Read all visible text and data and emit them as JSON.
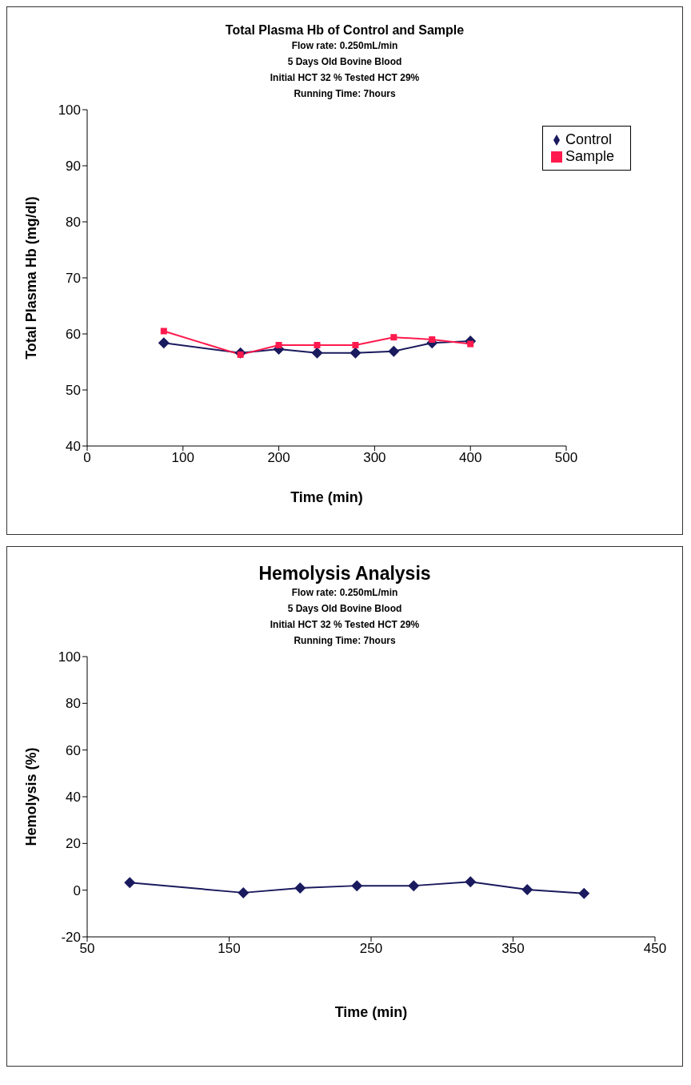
{
  "chart_data": [
    {
      "type": "line",
      "title": "Total Plasma Hb of Control and Sample",
      "subtitle": "Flow rate: 0.250mL/min\n5 Days Old Bovine Blood\nInitial HCT 32 % Tested HCT 29%\nRunning Time: 7hours",
      "xlabel": "Time (min)",
      "ylabel": "Total Plasma Hb (mg/dl)",
      "x": [
        80,
        160,
        200,
        240,
        280,
        320,
        360,
        400
      ],
      "series": [
        {
          "name": "Control",
          "color": "#1a1a5e",
          "marker": "diamond",
          "values": [
            58.4,
            56.6,
            57.3,
            56.6,
            56.6,
            56.9,
            58.4,
            58.7
          ]
        },
        {
          "name": "Sample",
          "color": "#ff1a4d",
          "marker": "square",
          "values": [
            60.5,
            56.3,
            58.0,
            58.0,
            58.0,
            59.4,
            59.0,
            58.2
          ]
        }
      ],
      "xlim": [
        0,
        500
      ],
      "xticks": [
        0,
        100,
        200,
        300,
        400,
        500
      ],
      "ylim": [
        40,
        100
      ],
      "yticks": [
        40,
        50,
        60,
        70,
        80,
        90,
        100
      ],
      "grid": false,
      "legend": "top right"
    },
    {
      "type": "line",
      "title": "Hemolysis Analysis",
      "subtitle": "Flow rate: 0.250mL/min\n5 Days Old Bovine Blood\nInitial HCT 32 % Tested HCT 29%\nRunning Time: 7hours",
      "xlabel": "Time (min)",
      "ylabel": "Hemolysis (%)",
      "x": [
        80,
        160,
        200,
        240,
        280,
        320,
        360,
        400
      ],
      "series": [
        {
          "color": "#1a1a5e",
          "marker": "diamond",
          "values": [
            3.2,
            -1.1,
            0.9,
            1.9,
            1.9,
            3.6,
            0.2,
            -1.4
          ]
        }
      ],
      "xlim": [
        50,
        450
      ],
      "xticks": [
        50,
        150,
        250,
        350,
        450
      ],
      "ylim": [
        -20,
        100
      ],
      "yticks": [
        -20,
        0,
        20,
        40,
        60,
        80,
        100
      ],
      "grid": false,
      "legend": false
    }
  ]
}
